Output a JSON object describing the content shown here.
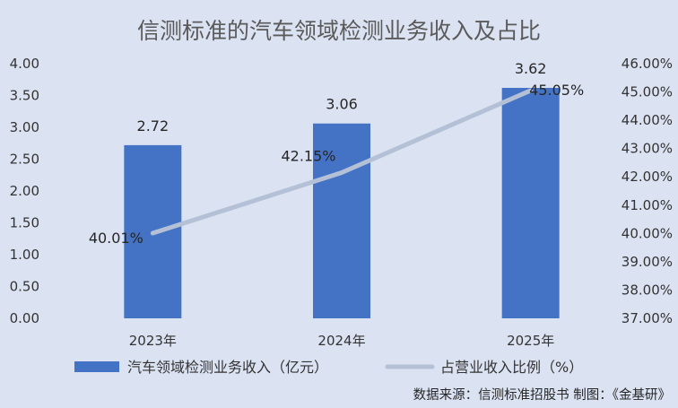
{
  "chart_data": {
    "type": "bar",
    "title": "信测标准的汽车领域检测业务收入及占比",
    "categories": [
      "2023年",
      "2024年",
      "2025年"
    ],
    "series": [
      {
        "name": "汽车领域检测业务收入（亿元）",
        "type": "bar",
        "axis": "left",
        "values": [
          2.72,
          3.06,
          3.62
        ],
        "labels": [
          "2.72",
          "3.06",
          "3.62"
        ]
      },
      {
        "name": "占营业收入比例（%）",
        "type": "line",
        "axis": "right",
        "values": [
          40.01,
          42.15,
          45.05
        ],
        "labels": [
          "40.01%",
          "42.15%",
          "45.05%"
        ]
      }
    ],
    "ylim": [
      0,
      4
    ],
    "y_ticks": [
      "0.00",
      "0.50",
      "1.00",
      "1.50",
      "2.00",
      "2.50",
      "3.00",
      "3.50",
      "4.00"
    ],
    "y2lim": [
      37,
      46
    ],
    "y2_ticks": [
      "37.00%",
      "38.00%",
      "39.00%",
      "40.00%",
      "41.00%",
      "42.00%",
      "43.00%",
      "44.00%",
      "45.00%",
      "46.00%"
    ],
    "grid": false,
    "legend_position": "bottom",
    "colors": {
      "bar": "#4472c4",
      "line": "#b4c0d6",
      "background": "#dbe3f3"
    }
  },
  "source_note": "数据来源：信测标准招股书   制图：《金基研》"
}
